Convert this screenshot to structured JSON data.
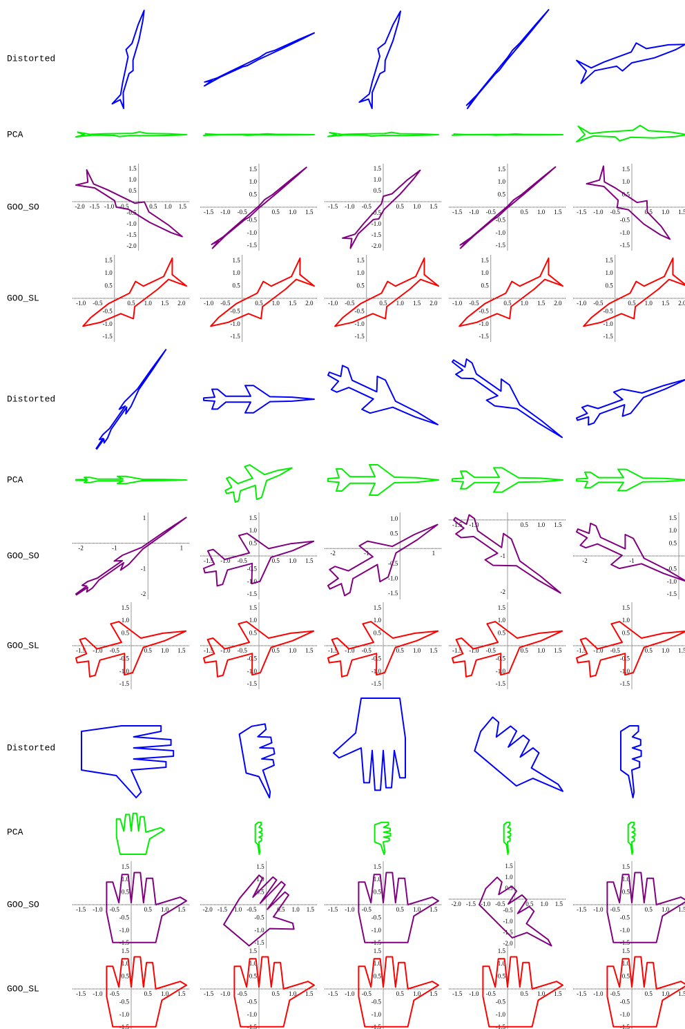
{
  "groups": [
    {
      "rows": [
        {
          "label": "Distorted",
          "color": "#0000ff"
        },
        {
          "label": "PCA",
          "color": "#00ee00"
        },
        {
          "label": "GOO_SO",
          "color": "#800080",
          "panels": [
            {
              "xticks": [
                "-2.0",
                "-1.5",
                "-1.0",
                "-0.5",
                "0.5",
                "1.0",
                "1.5"
              ],
              "yticks": [
                "1.5",
                "1.0",
                "0.5",
                "-0.5",
                "-1.0",
                "-1.5",
                "-2.0"
              ]
            },
            {
              "xticks": [
                "-1.5",
                "-1.0",
                "-0.5",
                "0.5",
                "1.0",
                "1.5"
              ],
              "yticks": [
                "1.5",
                "1.0",
                "0.5",
                "-0.5",
                "-1.0",
                "-1.5"
              ]
            },
            {
              "xticks": [
                "-1.5",
                "-1.0",
                "-0.5",
                "0.5",
                "1.0",
                "1.5"
              ],
              "yticks": [
                "1.5",
                "1.0",
                "0.5",
                "-0.5",
                "-1.0",
                "-1.5",
                "-2.0"
              ]
            },
            {
              "xticks": [
                "-1.5",
                "-1.0",
                "-0.5",
                "0.5",
                "1.0",
                "1.5"
              ],
              "yticks": [
                "1.5",
                "1.0",
                "0.5",
                "-0.5",
                "-1.0",
                "-1.5"
              ]
            },
            {
              "xticks": [
                "-1.5",
                "-1.0",
                "-0.5",
                "0.5",
                "1.0",
                "1.5"
              ],
              "yticks": [
                "1.5",
                "1.0",
                "0.5",
                "-0.5",
                "-1.0",
                "-1.5"
              ]
            }
          ]
        },
        {
          "label": "GOO_SL",
          "color": "#ff0000",
          "panels": [
            {
              "xticks": [
                "-1.0",
                "-0.5",
                "0.5",
                "1.0",
                "1.5",
                "2.0"
              ],
              "yticks": [
                "1.5",
                "1.0",
                "0.5",
                "-0.5",
                "-1.0",
                "-1.5"
              ]
            },
            {
              "xticks": [
                "-1.0",
                "-0.5",
                "0.5",
                "1.0",
                "1.5",
                "2.0"
              ],
              "yticks": [
                "1.5",
                "1.0",
                "0.5",
                "-0.5",
                "-1.0",
                "-1.5"
              ]
            },
            {
              "xticks": [
                "-1.0",
                "-0.5",
                "0.5",
                "1.0",
                "1.5",
                "2.0"
              ],
              "yticks": [
                "1.5",
                "1.0",
                "0.5",
                "-0.5",
                "-1.0",
                "-1.5"
              ]
            },
            {
              "xticks": [
                "-1.0",
                "-0.5",
                "0.5",
                "1.0",
                "1.5",
                "2.0"
              ],
              "yticks": [
                "1.5",
                "1.0",
                "0.5",
                "-0.5",
                "-1.0",
                "-1.5"
              ]
            },
            {
              "xticks": [
                "-1.0",
                "-0.5",
                "0.5",
                "1.0",
                "1.5",
                "2.0"
              ],
              "yticks": [
                "1.5",
                "1.0",
                "0.5",
                "-0.5",
                "-1.0",
                "-1.5"
              ]
            }
          ]
        }
      ]
    },
    {
      "rows": [
        {
          "label": "Distorted",
          "color": "#0000ff"
        },
        {
          "label": "PCA",
          "color": "#00ee00"
        },
        {
          "label": "GOO_SO",
          "color": "#800080",
          "panels": [
            {
              "xticks": [
                "-2",
                "-1",
                "1"
              ],
              "yticks": [
                "1",
                "-1",
                "-2"
              ]
            },
            {
              "xticks": [
                "-1.5",
                "-1.0",
                "-0.5",
                "0.5",
                "1.0",
                "1.5"
              ],
              "yticks": [
                "1.5",
                "1.0",
                "0.5",
                "-0.5",
                "-1.0",
                "-1.5"
              ]
            },
            {
              "xticks": [
                "-2",
                "-1",
                "1"
              ],
              "yticks": [
                "1.0",
                "0.5",
                "-0.5",
                "-1.0",
                "-1.5"
              ]
            },
            {
              "xticks": [
                "-1.5",
                "-1.0",
                "0.5",
                "1.0",
                "1.5"
              ],
              "yticks": [
                "-1",
                "-2"
              ]
            },
            {
              "xticks": [
                "-2",
                "-1"
              ],
              "yticks": [
                "1.5",
                "1.0",
                "0.5",
                "-0.5",
                "-1.0",
                "-1.5"
              ]
            }
          ]
        },
        {
          "label": "GOO_SL",
          "color": "#ff0000",
          "panels": [
            {
              "xticks": [
                "-1.5",
                "-1.0",
                "-0.5",
                "0.5",
                "1.0",
                "1.5"
              ],
              "yticks": [
                "1.5",
                "1.0",
                "0.5",
                "-0.5",
                "-1.0",
                "-1.5"
              ]
            },
            {
              "xticks": [
                "-1.5",
                "-1.0",
                "-0.5",
                "0.5",
                "1.0",
                "1.5"
              ],
              "yticks": [
                "1.5",
                "1.0",
                "0.5",
                "-0.5",
                "-1.0",
                "-1.5"
              ]
            },
            {
              "xticks": [
                "-1.5",
                "-1.0",
                "-0.5",
                "0.5",
                "1.0",
                "1.5"
              ],
              "yticks": [
                "1.5",
                "1.0",
                "0.5",
                "-0.5",
                "-1.0",
                "-1.5"
              ]
            },
            {
              "xticks": [
                "-1.5",
                "-1.0",
                "-0.5",
                "0.5",
                "1.0",
                "1.5"
              ],
              "yticks": [
                "1.5",
                "1.0",
                "0.5",
                "-0.5",
                "-1.0",
                "-1.5"
              ]
            },
            {
              "xticks": [
                "-1.5",
                "-1.0",
                "-0.5",
                "0.5",
                "1.0",
                "1.5"
              ],
              "yticks": [
                "1.5",
                "1.0",
                "0.5",
                "-0.5",
                "-1.0",
                "-1.5"
              ]
            }
          ]
        }
      ]
    },
    {
      "rows": [
        {
          "label": "Distorted",
          "color": "#0000ff"
        },
        {
          "label": "PCA",
          "color": "#00ee00"
        },
        {
          "label": "GOO_SO",
          "color": "#800080",
          "panels": [
            {
              "xticks": [
                "-1.5",
                "-1.0",
                "-0.5",
                "0.5",
                "1.0",
                "1.5"
              ],
              "yticks": [
                "1.5",
                "1.0",
                "0.5",
                "-0.5",
                "-1.0",
                "-1.5"
              ]
            },
            {
              "xticks": [
                "-2.0",
                "-1.5",
                "-1.0",
                "-0.5",
                "0.5",
                "1.0",
                "1.5"
              ],
              "yticks": [
                "1.5",
                "1.0",
                "0.5",
                "-0.5",
                "-1.0",
                "-1.5"
              ]
            },
            {
              "xticks": [
                "-1.5",
                "-1.0",
                "-0.5",
                "0.5",
                "1.0",
                "1.5"
              ],
              "yticks": [
                "1.5",
                "1.0",
                "0.5",
                "-0.5",
                "-1.0",
                "-1.5"
              ]
            },
            {
              "xticks": [
                "-2.0",
                "-1.5",
                "-1.0",
                "-0.5",
                "0.5",
                "1.0",
                "1.5"
              ],
              "yticks": [
                "1.5",
                "1.0",
                "0.5",
                "-0.5",
                "-1.0",
                "-1.5",
                "-2.0"
              ]
            },
            {
              "xticks": [
                "-1.5",
                "-1.0",
                "-0.5",
                "0.5",
                "1.0",
                "1.5"
              ],
              "yticks": [
                "1.5",
                "1.0",
                "0.5",
                "-0.5",
                "-1.0",
                "-1.5"
              ]
            }
          ]
        },
        {
          "label": "GOO_SL",
          "color": "#ff0000",
          "panels": [
            {
              "xticks": [
                "-1.5",
                "-1.0",
                "-0.5",
                "0.5",
                "1.0",
                "1.5"
              ],
              "yticks": [
                "1.5",
                "1.0",
                "0.5",
                "-0.5",
                "-1.0",
                "-1.5"
              ]
            },
            {
              "xticks": [
                "-1.5",
                "-1.0",
                "-0.5",
                "0.5",
                "1.0",
                "1.5"
              ],
              "yticks": [
                "1.5",
                "1.0",
                "0.5",
                "-0.5",
                "-1.0",
                "-1.5"
              ]
            },
            {
              "xticks": [
                "-1.5",
                "-1.0",
                "-0.5",
                "0.5",
                "1.0",
                "1.5"
              ],
              "yticks": [
                "1.5",
                "1.0",
                "0.5",
                "-0.5",
                "-1.0",
                "-1.5"
              ]
            },
            {
              "xticks": [
                "-1.5",
                "-1.0",
                "-0.5",
                "0.5",
                "1.0",
                "1.5"
              ],
              "yticks": [
                "1.5",
                "1.0",
                "0.5",
                "-0.5",
                "-1.0",
                "-1.5"
              ]
            },
            {
              "xticks": [
                "-1.5",
                "-1.0",
                "-0.5",
                "0.5",
                "1.0",
                "1.5"
              ],
              "yticks": [
                "1.5",
                "1.0",
                "0.5",
                "-0.5",
                "-1.0",
                "-1.5"
              ]
            }
          ]
        }
      ]
    }
  ]
}
